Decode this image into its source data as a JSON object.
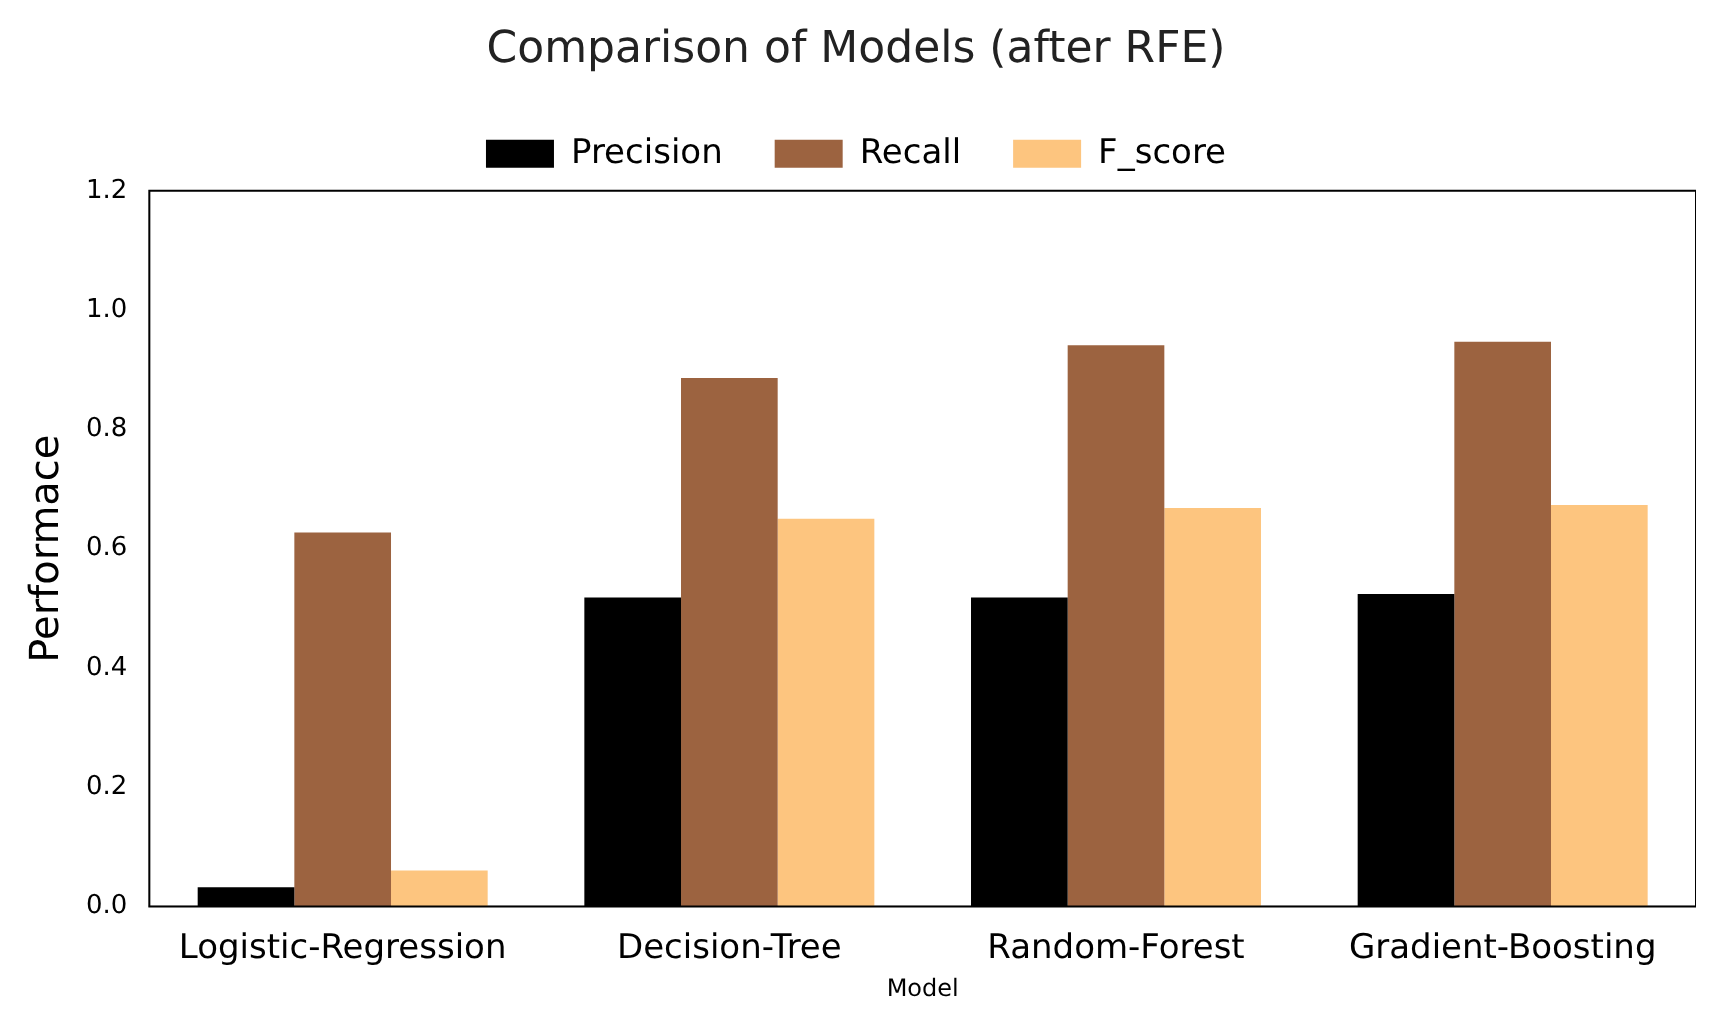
{
  "chart_data": {
    "type": "bar",
    "title": "Comparison of Models (after RFE)",
    "xlabel": "Model",
    "ylabel": "Performace",
    "categories": [
      "Logistic-Regression",
      "Decision-Tree",
      "Random-Forest",
      "Gradient-Boosting"
    ],
    "series": [
      {
        "name": "Precision",
        "color": "#000000",
        "values": [
          0.032,
          0.518,
          0.518,
          0.524
        ]
      },
      {
        "name": "Recall",
        "color": "#9c6340",
        "values": [
          0.627,
          0.886,
          0.941,
          0.947
        ]
      },
      {
        "name": "F_score",
        "color": "#fdc57f",
        "values": [
          0.06,
          0.65,
          0.668,
          0.673
        ]
      }
    ],
    "ylim": [
      0,
      1.2
    ],
    "yticks": [
      {
        "value": 0,
        "label": "0.0"
      },
      0.2,
      0.4,
      0.6,
      0.8,
      {
        "value": 1,
        "label": "1.0"
      },
      1.2
    ],
    "grid": false,
    "legend": "top"
  }
}
